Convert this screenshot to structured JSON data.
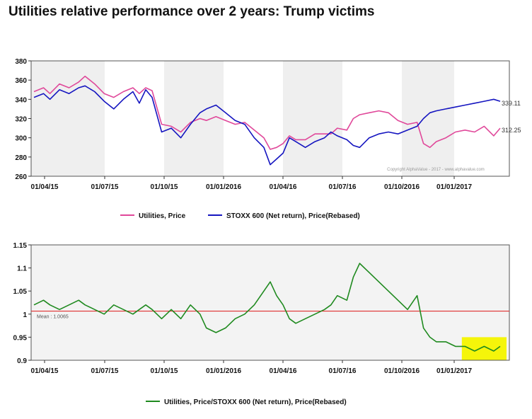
{
  "page": {
    "title": "Utilities relative performance over 2 years: Trump victims"
  },
  "colors": {
    "utilities": "#e0489a",
    "stoxx": "#1515c0",
    "ratio": "#1f8a1f",
    "mean_line": "#e03030",
    "band": "#efefef",
    "highlight": "#f5f50a"
  },
  "chart_data": [
    {
      "type": "line",
      "x_tick_labels": [
        "01/04/15",
        "01/07/15",
        "01/10/15",
        "01/01/2016",
        "01/04/16",
        "01/07/16",
        "01/10/2016",
        "01/01/2017"
      ],
      "y_ticks": [
        260,
        280,
        300,
        320,
        340,
        360,
        380
      ],
      "ylim": [
        260,
        380
      ],
      "grid": "alternating vertical bands",
      "legend_position": "bottom",
      "copyright": "Copyright AlphaValue - 2017 - www.alphavalue.com",
      "series": [
        {
          "name": "Utilities, Price",
          "color_key": "utilities",
          "end_label": "312.25",
          "points": [
            [
              0,
              348
            ],
            [
              3,
              352
            ],
            [
              5,
              346
            ],
            [
              8,
              356
            ],
            [
              11,
              352
            ],
            [
              14,
              358
            ],
            [
              16,
              364
            ],
            [
              19,
              356
            ],
            [
              22,
              346
            ],
            [
              25,
              342
            ],
            [
              28,
              348
            ],
            [
              31,
              352
            ],
            [
              33,
              346
            ],
            [
              35,
              352
            ],
            [
              37,
              349
            ],
            [
              40,
              314
            ],
            [
              43,
              312
            ],
            [
              46,
              306
            ],
            [
              49,
              316
            ],
            [
              52,
              320
            ],
            [
              54,
              318
            ],
            [
              57,
              322
            ],
            [
              60,
              318
            ],
            [
              63,
              314
            ],
            [
              66,
              316
            ],
            [
              69,
              308
            ],
            [
              72,
              300
            ],
            [
              74,
              288
            ],
            [
              76,
              290
            ],
            [
              78,
              294
            ],
            [
              80,
              302
            ],
            [
              82,
              298
            ],
            [
              85,
              298
            ],
            [
              88,
              304
            ],
            [
              91,
              304
            ],
            [
              93,
              304
            ],
            [
              95,
              310
            ],
            [
              98,
              308
            ],
            [
              100,
              320
            ],
            [
              102,
              324
            ],
            [
              105,
              326
            ],
            [
              108,
              328
            ],
            [
              111,
              326
            ],
            [
              114,
              318
            ],
            [
              117,
              314
            ],
            [
              120,
              316
            ],
            [
              122,
              294
            ],
            [
              124,
              290
            ],
            [
              126,
              296
            ],
            [
              129,
              300
            ],
            [
              132,
              306
            ],
            [
              135,
              308
            ],
            [
              138,
              306
            ],
            [
              141,
              312
            ],
            [
              144,
              302
            ],
            [
              146,
              310
            ]
          ]
        },
        {
          "name": "STOXX 600 (Net return), Price(Rebased)",
          "color_key": "stoxx",
          "end_label": "339.11",
          "points": [
            [
              0,
              342
            ],
            [
              3,
              346
            ],
            [
              5,
              340
            ],
            [
              8,
              350
            ],
            [
              11,
              346
            ],
            [
              14,
              352
            ],
            [
              16,
              354
            ],
            [
              19,
              348
            ],
            [
              22,
              338
            ],
            [
              25,
              330
            ],
            [
              28,
              340
            ],
            [
              31,
              348
            ],
            [
              33,
              336
            ],
            [
              35,
              350
            ],
            [
              37,
              342
            ],
            [
              40,
              306
            ],
            [
              43,
              310
            ],
            [
              46,
              300
            ],
            [
              49,
              314
            ],
            [
              52,
              326
            ],
            [
              54,
              330
            ],
            [
              57,
              334
            ],
            [
              60,
              326
            ],
            [
              63,
              318
            ],
            [
              66,
              314
            ],
            [
              69,
              300
            ],
            [
              72,
              290
            ],
            [
              74,
              272
            ],
            [
              76,
              278
            ],
            [
              78,
              284
            ],
            [
              80,
              300
            ],
            [
              82,
              296
            ],
            [
              85,
              290
            ],
            [
              88,
              296
            ],
            [
              91,
              300
            ],
            [
              93,
              306
            ],
            [
              95,
              302
            ],
            [
              98,
              298
            ],
            [
              100,
              292
            ],
            [
              102,
              290
            ],
            [
              105,
              300
            ],
            [
              108,
              304
            ],
            [
              111,
              306
            ],
            [
              114,
              304
            ],
            [
              117,
              308
            ],
            [
              120,
              312
            ],
            [
              122,
              320
            ],
            [
              124,
              326
            ],
            [
              126,
              328
            ],
            [
              129,
              330
            ],
            [
              132,
              332
            ],
            [
              135,
              334
            ],
            [
              138,
              336
            ],
            [
              141,
              338
            ],
            [
              144,
              340
            ],
            [
              146,
              338
            ]
          ]
        }
      ]
    },
    {
      "type": "line",
      "x_tick_labels": [
        "01/04/15",
        "01/07/15",
        "01/10/15",
        "01/01/2016",
        "01/04/16",
        "01/07/16",
        "01/10/2016",
        "01/01/2017"
      ],
      "y_tick_labels": [
        "0.9",
        "0.95",
        "1",
        "1.05",
        "1.1",
        "1.15"
      ],
      "ylim": [
        0.9,
        1.15
      ],
      "grid": "light grey plot background",
      "mean_value": 1.0065,
      "mean_label": "Mean : 1.0065",
      "highlight_range_x": [
        134,
        148
      ],
      "highlight_range_y": [
        0.9,
        0.95
      ],
      "legend_position": "bottom",
      "series": [
        {
          "name": "Utilities, Price/STOXX 600 (Net return), Price(Rebased)",
          "color_key": "ratio",
          "points": [
            [
              0,
              1.02
            ],
            [
              3,
              1.03
            ],
            [
              5,
              1.02
            ],
            [
              8,
              1.01
            ],
            [
              11,
              1.02
            ],
            [
              14,
              1.03
            ],
            [
              16,
              1.02
            ],
            [
              19,
              1.01
            ],
            [
              22,
              1.0
            ],
            [
              25,
              1.02
            ],
            [
              28,
              1.01
            ],
            [
              31,
              1.0
            ],
            [
              33,
              1.01
            ],
            [
              35,
              1.02
            ],
            [
              37,
              1.01
            ],
            [
              40,
              0.99
            ],
            [
              43,
              1.01
            ],
            [
              46,
              0.99
            ],
            [
              49,
              1.02
            ],
            [
              52,
              1.0
            ],
            [
              54,
              0.97
            ],
            [
              57,
              0.96
            ],
            [
              60,
              0.97
            ],
            [
              63,
              0.99
            ],
            [
              66,
              1.0
            ],
            [
              69,
              1.02
            ],
            [
              72,
              1.05
            ],
            [
              74,
              1.07
            ],
            [
              76,
              1.04
            ],
            [
              78,
              1.02
            ],
            [
              80,
              0.99
            ],
            [
              82,
              0.98
            ],
            [
              85,
              0.99
            ],
            [
              88,
              1.0
            ],
            [
              91,
              1.01
            ],
            [
              93,
              1.02
            ],
            [
              95,
              1.04
            ],
            [
              98,
              1.03
            ],
            [
              100,
              1.08
            ],
            [
              102,
              1.11
            ],
            [
              105,
              1.09
            ],
            [
              108,
              1.07
            ],
            [
              111,
              1.05
            ],
            [
              114,
              1.03
            ],
            [
              117,
              1.01
            ],
            [
              120,
              1.04
            ],
            [
              122,
              0.97
            ],
            [
              124,
              0.95
            ],
            [
              126,
              0.94
            ],
            [
              129,
              0.94
            ],
            [
              132,
              0.93
            ],
            [
              135,
              0.93
            ],
            [
              138,
              0.92
            ],
            [
              141,
              0.93
            ],
            [
              144,
              0.92
            ],
            [
              146,
              0.93
            ]
          ]
        }
      ]
    }
  ]
}
